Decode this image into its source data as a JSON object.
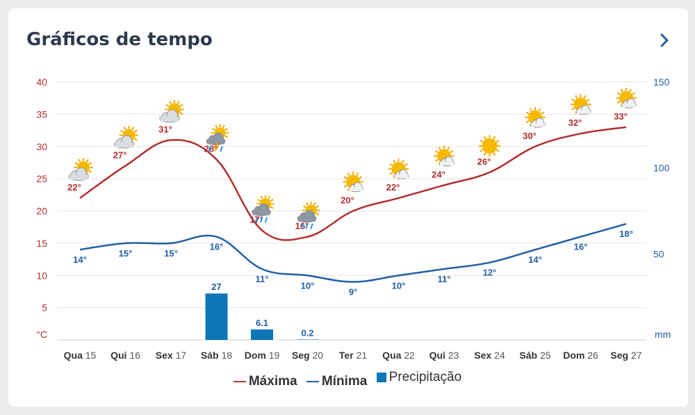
{
  "header": {
    "title": "Gráficos de tempo",
    "next_icon": "chevron-right-icon"
  },
  "legend": {
    "max_label": "Máxima",
    "min_label": "Mínima",
    "precip_label": "Precipitação"
  },
  "colors": {
    "max": "#b22d2d",
    "min": "#1f5fa6",
    "precip": "#0e76b8",
    "grid": "#e2e2e2"
  },
  "chart_data": {
    "type": "line",
    "days": [
      {
        "weekday": "Qua",
        "date": "15"
      },
      {
        "weekday": "Qui",
        "date": "16"
      },
      {
        "weekday": "Sex",
        "date": "17"
      },
      {
        "weekday": "Sáb",
        "date": "18"
      },
      {
        "weekday": "Dom",
        "date": "19"
      },
      {
        "weekday": "Seg",
        "date": "20"
      },
      {
        "weekday": "Ter",
        "date": "21"
      },
      {
        "weekday": "Qua",
        "date": "22"
      },
      {
        "weekday": "Qui",
        "date": "23"
      },
      {
        "weekday": "Sex",
        "date": "24"
      },
      {
        "weekday": "Sáb",
        "date": "25"
      },
      {
        "weekday": "Dom",
        "date": "26"
      },
      {
        "weekday": "Seg",
        "date": "27"
      }
    ],
    "series": [
      {
        "name": "Máxima",
        "values": [
          22,
          27,
          31,
          28,
          17,
          16,
          20,
          22,
          24,
          26,
          30,
          32,
          33
        ],
        "labels": [
          "22°",
          "27°",
          "31°",
          "28°",
          "17°",
          "16°",
          "20°",
          "22°",
          "24°",
          "26°",
          "30°",
          "32°",
          "33°"
        ]
      },
      {
        "name": "Mínima",
        "values": [
          14,
          15,
          15,
          16,
          11,
          10,
          9,
          10,
          11,
          12,
          14,
          16,
          18
        ],
        "labels": [
          "14°",
          "15°",
          "15°",
          "16°",
          "11°",
          "10°",
          "9°",
          "10°",
          "11°",
          "12°",
          "14°",
          "16°",
          "18°"
        ]
      },
      {
        "name": "Precipitação",
        "values": [
          0,
          0,
          0,
          27,
          6.1,
          0.2,
          0,
          0,
          0,
          0,
          0,
          0,
          0
        ],
        "labels": [
          "",
          "",
          "",
          "27",
          "6.1",
          "0.2",
          "",
          "",
          "",
          "",
          "",
          "",
          ""
        ]
      }
    ],
    "y_left": {
      "range": [
        0,
        40
      ],
      "ticks": [
        "40",
        "35",
        "30",
        "25",
        "20",
        "15",
        "10",
        "5"
      ],
      "unit": "°C"
    },
    "y_right": {
      "range": [
        0,
        150
      ],
      "ticks": [
        "150",
        "100",
        "50"
      ],
      "unit": "mm"
    },
    "weather_icons": [
      "partly-cloudy",
      "partly-cloudy",
      "partly-cloudy",
      "thunderstorm",
      "rain",
      "rain",
      "partly-sunny",
      "partly-sunny",
      "partly-sunny",
      "sunny",
      "partly-sunny",
      "partly-sunny",
      "partly-sunny"
    ],
    "grid": true,
    "legend_position": "bottom-center"
  }
}
